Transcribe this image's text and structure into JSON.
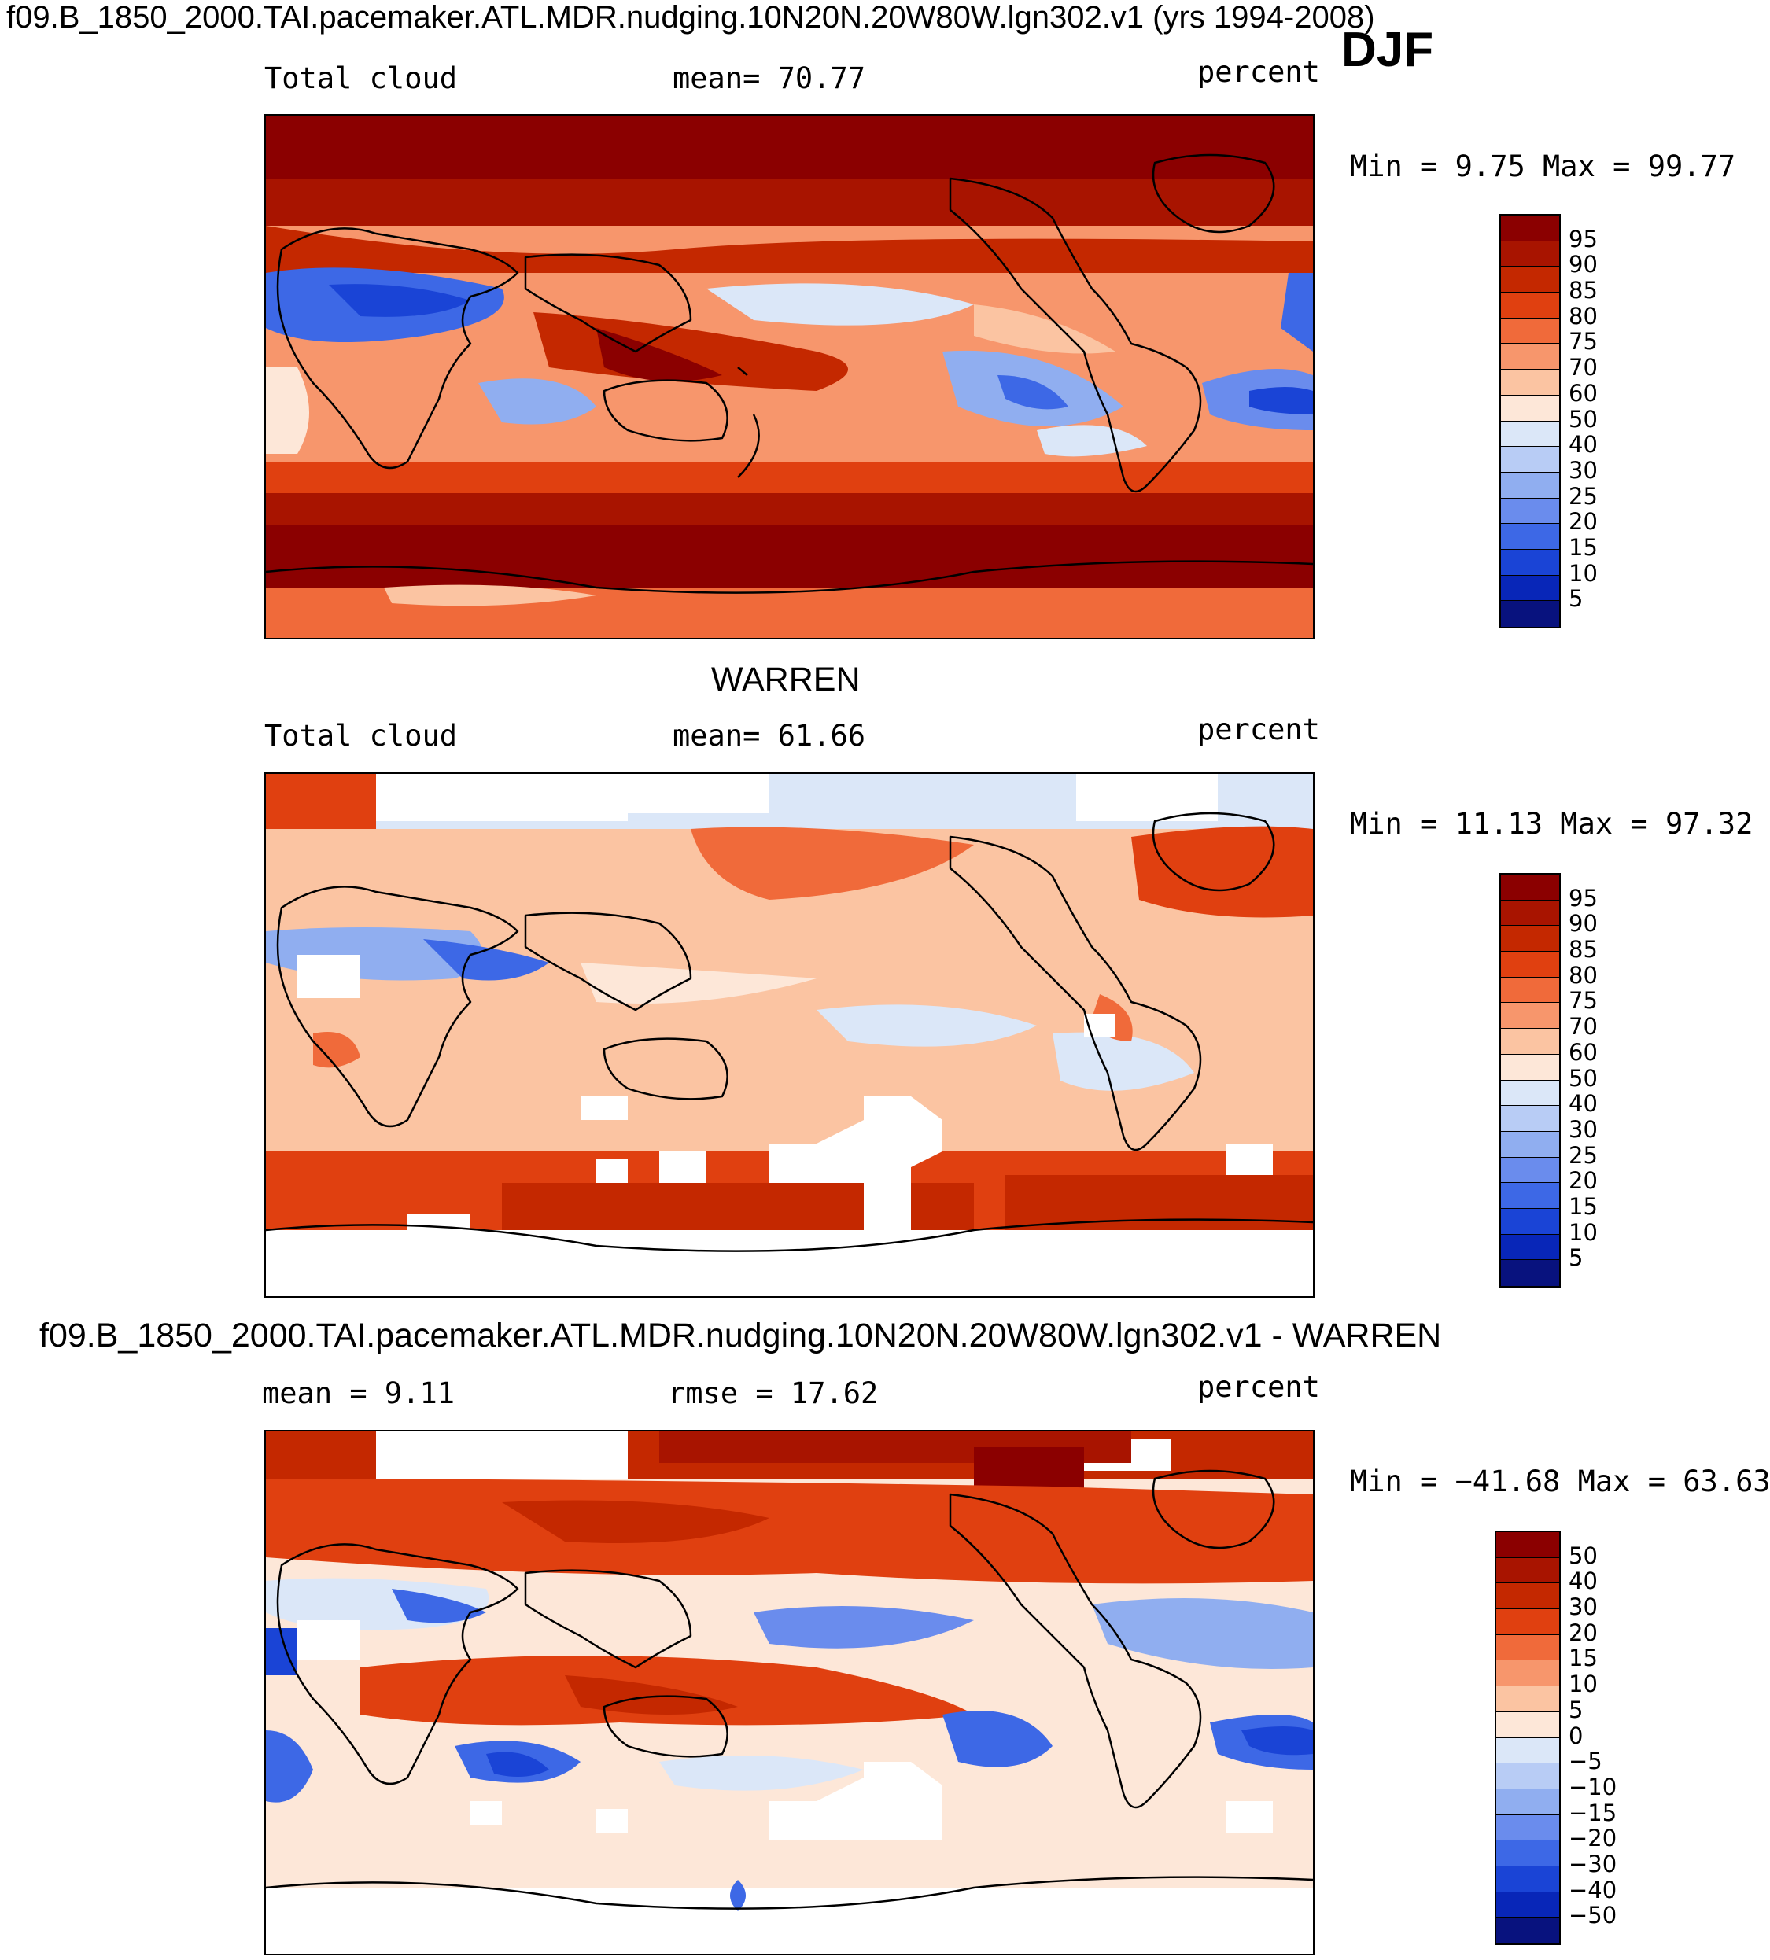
{
  "header": {
    "case_title": "f09.B_1850_2000.TAI.pacemaker.ATL.MDR.nudging.10N20N.20W80W.lgn302.v1 (yrs 1994-2008)",
    "season": "DJF"
  },
  "panels": [
    {
      "id": "model",
      "subtitle": "",
      "left_label": "Total cloud",
      "center_label": "mean=  70.77",
      "right_label": "percent",
      "minmax": "Min =    9.75 Max =   99.77",
      "colorbar": {
        "levels": [
          "95",
          "90",
          "85",
          "80",
          "75",
          "70",
          "60",
          "50",
          "40",
          "30",
          "25",
          "20",
          "15",
          "10",
          "5"
        ],
        "colors": [
          "#8b0000",
          "#a81400",
          "#c42800",
          "#e04010",
          "#f06a3a",
          "#f7966c",
          "#fbc4a2",
          "#fde7d8",
          "#dbe7f8",
          "#b8ccf5",
          "#90aef0",
          "#6a8ced",
          "#3d68e6",
          "#1a44d6",
          "#0826b8",
          "#08127e"
        ]
      }
    },
    {
      "id": "obs",
      "subtitle": "WARREN",
      "left_label": "Total cloud",
      "center_label": "mean=  61.66",
      "right_label": "percent",
      "minmax": "Min =   11.13 Max =   97.32",
      "colorbar": {
        "levels": [
          "95",
          "90",
          "85",
          "80",
          "75",
          "70",
          "60",
          "50",
          "40",
          "30",
          "25",
          "20",
          "15",
          "10",
          "5"
        ],
        "colors": [
          "#8b0000",
          "#a81400",
          "#c42800",
          "#e04010",
          "#f06a3a",
          "#f7966c",
          "#fbc4a2",
          "#fde7d8",
          "#dbe7f8",
          "#b8ccf5",
          "#90aef0",
          "#6a8ced",
          "#3d68e6",
          "#1a44d6",
          "#0826b8",
          "#08127e"
        ]
      }
    },
    {
      "id": "diff",
      "subtitle": "f09.B_1850_2000.TAI.pacemaker.ATL.MDR.nudging.10N20N.20W80W.lgn302.v1 - WARREN",
      "left_label": "mean =   9.11",
      "center_label": "rmse =  17.62",
      "right_label": "percent",
      "minmax": "Min = −41.68 Max =   63.63",
      "colorbar": {
        "levels": [
          "50",
          "40",
          "30",
          "20",
          "15",
          "10",
          "5",
          "0",
          "−5",
          "−10",
          "−15",
          "−20",
          "−30",
          "−40",
          "−50"
        ],
        "colors": [
          "#8b0000",
          "#a81400",
          "#c42800",
          "#e04010",
          "#f06a3a",
          "#f7966c",
          "#fbc4a2",
          "#fde7d8",
          "#dbe7f8",
          "#b8ccf5",
          "#90aef0",
          "#6a8ced",
          "#3d68e6",
          "#1a44d6",
          "#0826b8",
          "#08127e"
        ]
      }
    }
  ]
}
